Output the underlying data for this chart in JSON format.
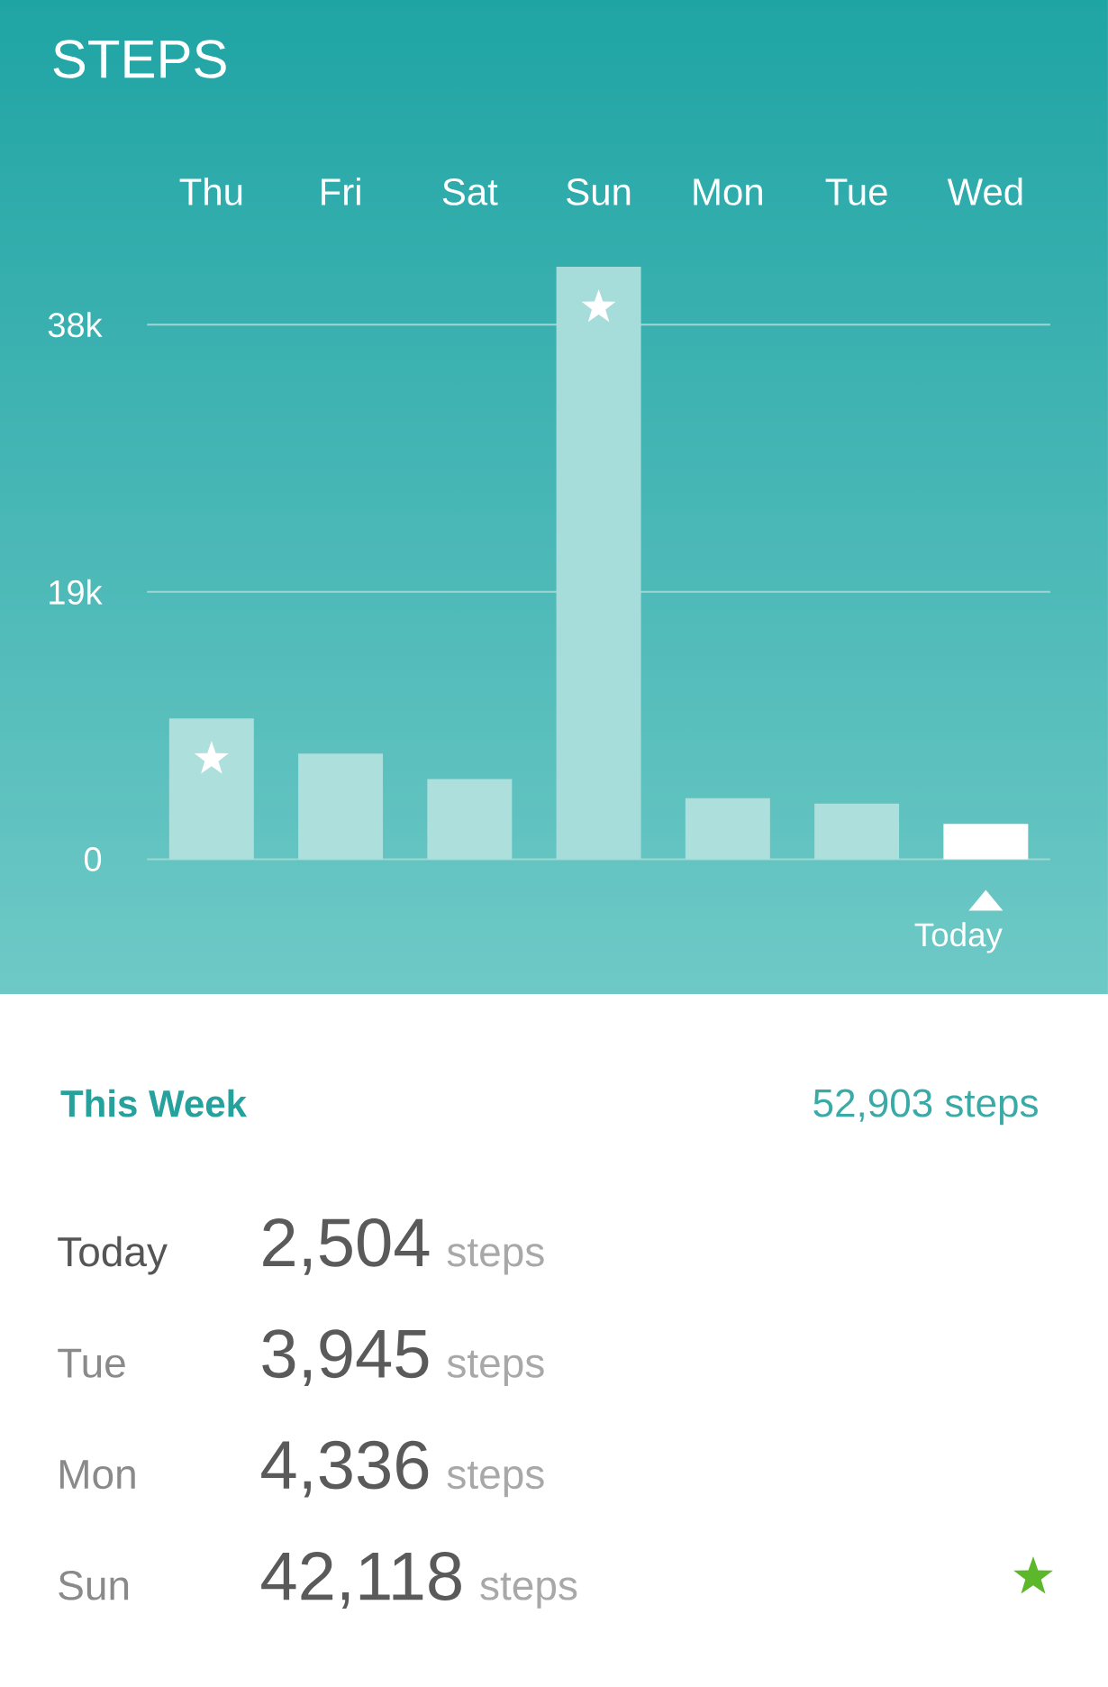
{
  "chart_data": [
    {
      "type": "bar",
      "title": "STEPS",
      "categories": [
        "Thu",
        "Fri",
        "Sat",
        "Sun",
        "Mon",
        "Tue",
        "Wed"
      ],
      "values": [
        10000,
        7500,
        5700,
        42118,
        4336,
        3945,
        2504
      ],
      "colors": [
        "#addfdd",
        "#addfdd",
        "#addfdd",
        "#a6dcda",
        "#addfdd",
        "#addfdd",
        "#ffffff"
      ],
      "ylim": [
        0,
        42118
      ],
      "yticks": [
        0,
        {
          "value": 19000,
          "label": "19k"
        },
        {
          "value": 38000,
          "label": "38k"
        }
      ],
      "grid": "y",
      "annotations": [
        "Today"
      ]
    },
    {
      "type": "other",
      "title": "This Week",
      "annotations": [
        "52,903 steps",
        "Today",
        "2,504",
        "steps",
        "Tue",
        "3,945",
        "steps",
        "Mon",
        "4,336",
        "steps",
        "Sun",
        "42,118",
        "steps"
      ]
    }
  ]
}
